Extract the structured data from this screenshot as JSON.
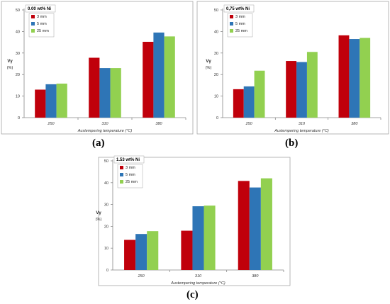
{
  "colors": {
    "3 mm": "#c0000b",
    "5 mm": "#2e75b6",
    "25 mm": "#92d050",
    "axis": "#888888"
  },
  "chart_data": [
    {
      "type": "bar",
      "title": "0.00 wt% Ni",
      "xlabel": "Austempering temperature (°C)",
      "ylabel": "Vγ (%)",
      "ylim": [
        0,
        50
      ],
      "yticks": [
        0,
        10,
        20,
        30,
        40,
        50
      ],
      "categories": [
        "250",
        "310",
        "380"
      ],
      "series": [
        {
          "name": "3 mm",
          "values": [
            13.0,
            27.8,
            35.2
          ]
        },
        {
          "name": "5 mm",
          "values": [
            15.5,
            23.0,
            39.5
          ]
        },
        {
          "name": "25 mm",
          "values": [
            15.8,
            23.0,
            37.7
          ]
        }
      ],
      "legend": "top-left",
      "caption": "(a)"
    },
    {
      "type": "bar",
      "title": "0,75 wt% Ni",
      "xlabel": "Austempering temperature (°C)",
      "ylabel": "Vγ (%)",
      "ylim": [
        0,
        50
      ],
      "yticks": [
        0,
        10,
        20,
        30,
        40,
        50
      ],
      "categories": [
        "250",
        "310",
        "380"
      ],
      "series": [
        {
          "name": "3 mm",
          "values": [
            13.2,
            26.3,
            38.2
          ]
        },
        {
          "name": "5 mm",
          "values": [
            14.5,
            25.8,
            36.5
          ]
        },
        {
          "name": "25 mm",
          "values": [
            21.8,
            30.5,
            37.0
          ]
        }
      ],
      "legend": "top-left",
      "caption": "(b)"
    },
    {
      "type": "bar",
      "title": "1.53 wt% Ni",
      "xlabel": "Austempering temperature (°C)",
      "ylabel": "Vγ (%)",
      "ylim": [
        0,
        50
      ],
      "yticks": [
        0,
        10,
        20,
        30,
        40,
        50
      ],
      "categories": [
        "250",
        "310",
        "380"
      ],
      "series": [
        {
          "name": "3 mm",
          "values": [
            13.8,
            18.0,
            40.8
          ]
        },
        {
          "name": "5 mm",
          "values": [
            16.5,
            29.2,
            37.8
          ]
        },
        {
          "name": "25 mm",
          "values": [
            17.8,
            29.5,
            42.0
          ]
        }
      ],
      "legend": "top-left",
      "caption": "(c)"
    }
  ]
}
